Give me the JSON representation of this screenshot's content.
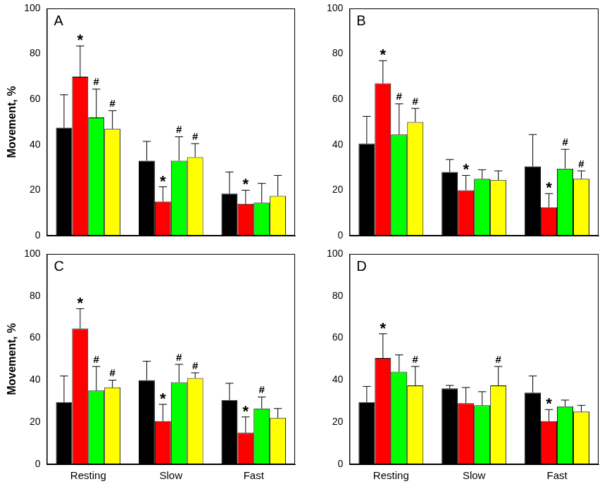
{
  "chart_data": [
    {
      "type": "bar",
      "title": "A",
      "y_label": "Movement, %",
      "categories": [
        "Resting",
        "Slow",
        "Fast"
      ],
      "ylim": [
        0,
        100
      ],
      "yticks": [
        0,
        20,
        40,
        60,
        80,
        100
      ],
      "grid": false,
      "tick_labels": "y",
      "series": [
        {
          "color": "#000000",
          "values": [
            47.5,
            33,
            18.5
          ],
          "errors": [
            14.5,
            8.5,
            9.5
          ],
          "marks": [
            null,
            null,
            null
          ]
        },
        {
          "color": "#ff0000",
          "values": [
            70,
            15,
            14
          ],
          "errors": [
            13.5,
            6.5,
            6
          ],
          "marks": [
            "*",
            "*",
            "*"
          ]
        },
        {
          "color": "#00ff00",
          "values": [
            52,
            33,
            14.5
          ],
          "errors": [
            12.5,
            10.5,
            8.5
          ],
          "marks": [
            "#",
            "#",
            null
          ]
        },
        {
          "color": "#ffff00",
          "values": [
            47,
            34.5,
            17.5
          ],
          "errors": [
            8,
            6,
            9
          ],
          "marks": [
            "#",
            "#",
            null
          ]
        }
      ]
    },
    {
      "type": "bar",
      "title": "B",
      "categories": [
        "Resting",
        "Slow",
        "Fast"
      ],
      "ylim": [
        0,
        100
      ],
      "yticks": [
        0,
        20,
        40,
        60,
        80,
        100
      ],
      "grid": false,
      "tick_labels": "y",
      "series": [
        {
          "color": "#000000",
          "values": [
            40.5,
            28,
            30.5
          ],
          "errors": [
            12,
            5.5,
            14
          ],
          "marks": [
            null,
            null,
            null
          ]
        },
        {
          "color": "#ff0000",
          "values": [
            67,
            20,
            12.5
          ],
          "errors": [
            10,
            6.5,
            6
          ],
          "marks": [
            "*",
            "*",
            "*"
          ]
        },
        {
          "color": "#00ff00",
          "values": [
            44.5,
            25,
            29.5
          ],
          "errors": [
            13.5,
            4,
            8.5
          ],
          "marks": [
            "#",
            null,
            "#"
          ]
        },
        {
          "color": "#ffff00",
          "values": [
            50,
            24.5,
            25
          ],
          "errors": [
            6,
            4,
            3.5
          ],
          "marks": [
            "#",
            null,
            "#"
          ]
        }
      ]
    },
    {
      "type": "bar",
      "title": "C",
      "y_label": "Movement, %",
      "categories": [
        "Resting",
        "Slow",
        "Fast"
      ],
      "ylim": [
        0,
        100
      ],
      "yticks": [
        0,
        20,
        40,
        60,
        80,
        100
      ],
      "grid": false,
      "series": [
        {
          "color": "#000000",
          "values": [
            29.5,
            40,
            30.5
          ],
          "errors": [
            12.5,
            9,
            8
          ],
          "marks": [
            null,
            null,
            null
          ]
        },
        {
          "color": "#ff0000",
          "values": [
            64.5,
            20.5,
            15
          ],
          "errors": [
            9.5,
            8,
            7.5
          ],
          "marks": [
            "*",
            "*",
            "*"
          ]
        },
        {
          "color": "#00ff00",
          "values": [
            35,
            39,
            26.5
          ],
          "errors": [
            11.5,
            8.5,
            5.5
          ],
          "marks": [
            "#",
            "#",
            "#"
          ]
        },
        {
          "color": "#ffff00",
          "values": [
            36.5,
            41,
            22
          ],
          "errors": [
            3.5,
            2.5,
            4.5
          ],
          "marks": [
            "#",
            "#",
            null
          ]
        }
      ]
    },
    {
      "type": "bar",
      "title": "D",
      "categories": [
        "Resting",
        "Slow",
        "Fast"
      ],
      "ylim": [
        0,
        100
      ],
      "yticks": [
        0,
        20,
        40,
        60,
        80,
        100
      ],
      "grid": false,
      "series": [
        {
          "color": "#000000",
          "values": [
            29.5,
            36,
            34
          ],
          "errors": [
            7.5,
            1.5,
            8
          ],
          "marks": [
            null,
            null,
            null
          ]
        },
        {
          "color": "#ff0000",
          "values": [
            50.5,
            29,
            20.5
          ],
          "errors": [
            11.5,
            7.5,
            5.5
          ],
          "marks": [
            "*",
            null,
            "*"
          ]
        },
        {
          "color": "#00ff00",
          "values": [
            44,
            28,
            27.5
          ],
          "errors": [
            8,
            6.5,
            3
          ],
          "marks": [
            null,
            null,
            null
          ]
        },
        {
          "color": "#ffff00",
          "values": [
            37.5,
            37.5,
            25
          ],
          "errors": [
            9,
            9,
            3
          ],
          "marks": [
            "#",
            "#",
            null
          ]
        }
      ]
    }
  ]
}
